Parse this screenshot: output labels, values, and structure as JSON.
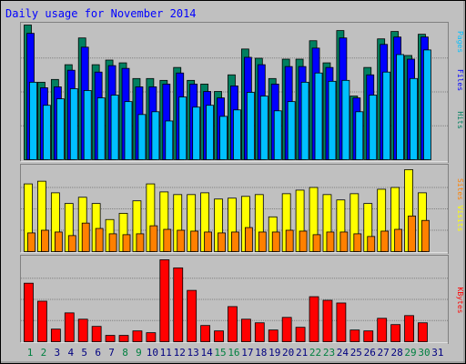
{
  "chart_data": {
    "type": "bar",
    "title": "Daily usage for November 2014",
    "categories": [
      "1",
      "2",
      "3",
      "4",
      "5",
      "6",
      "7",
      "8",
      "9",
      "10",
      "11",
      "12",
      "13",
      "14",
      "15",
      "16",
      "17",
      "18",
      "19",
      "20",
      "21",
      "22",
      "23",
      "24",
      "25",
      "26",
      "27",
      "28",
      "29",
      "30",
      "31"
    ],
    "label_colors": [
      "#008040",
      "#008040",
      "#000080",
      "#000080",
      "#000080",
      "#000080",
      "#000080",
      "#008040",
      "#008040",
      "#000080",
      "#000080",
      "#000080",
      "#000080",
      "#000080",
      "#008040",
      "#008040",
      "#000080",
      "#000080",
      "#000080",
      "#000080",
      "#000080",
      "#008040",
      "#008040",
      "#000080",
      "#000080",
      "#000080",
      "#000080",
      "#000080",
      "#008040",
      "#008040",
      "#000080"
    ],
    "panels": [
      {
        "ylim": [
          0,
          147
        ],
        "series": [
          {
            "name": "Hits",
            "color": "#008060",
            "values": [
              146,
              84,
              87,
              103,
              132,
              103,
              108,
              105,
              88,
              88,
              86,
              100,
              86,
              82,
              74,
              92,
              120,
              110,
              88,
              109,
              109,
              129,
              105,
              140,
              69,
              100,
              131,
              139,
              113,
              136,
              null
            ]
          },
          {
            "name": "Files",
            "color": "#0000ff",
            "values": [
              137,
              78,
              79,
              97,
              122,
              95,
              102,
              99,
              79,
              79,
              82,
              94,
              82,
              74,
              67,
              80,
              111,
              103,
              82,
              101,
              101,
              121,
              100,
              132,
              67,
              92,
              125,
              133,
              109,
              133,
              null
            ]
          },
          {
            "name": "Pages",
            "color": "#00c0ff",
            "values": [
              84,
              59,
              66,
              77,
              75,
              67,
              70,
              63,
              49,
              52,
              42,
              68,
              57,
              59,
              47,
              54,
              73,
              69,
              53,
              63,
              84,
              94,
              85,
              86,
              52,
              70,
              95,
              114,
              88,
              119,
              null
            ]
          }
        ]
      },
      {
        "ylim": [
          0,
          96
        ],
        "series": [
          {
            "name": "Visits",
            "color": "#ffff00",
            "values": [
              76,
              79,
              66,
              54,
              61,
              54,
              36,
              43,
              57,
              76,
              67,
              64,
              64,
              66,
              59,
              60,
              62,
              64,
              39,
              65,
              69,
              72,
              64,
              58,
              65,
              54,
              70,
              72,
              92,
              66,
              null
            ]
          },
          {
            "name": "Sites",
            "color": "#ff8000",
            "values": [
              21,
              24,
              22,
              18,
              32,
              26,
              20,
              19,
              20,
              29,
              25,
              24,
              23,
              22,
              21,
              22,
              27,
              22,
              22,
              24,
              23,
              19,
              22,
              22,
              20,
              17,
              23,
              25,
              40,
              35,
              null
            ]
          }
        ]
      },
      {
        "ylim": [
          0,
          94
        ],
        "series": [
          {
            "name": "KBytes",
            "color": "#ff0000",
            "values": [
              65,
              45,
              14,
              32,
              25,
              17,
              7,
              7,
              12,
              10,
              91,
              82,
              57,
              18,
              12,
              39,
              25,
              21,
              13,
              27,
              16,
              50,
              46,
              43,
              13,
              12,
              26,
              19,
              29,
              21,
              null
            ]
          }
        ]
      }
    ]
  }
}
